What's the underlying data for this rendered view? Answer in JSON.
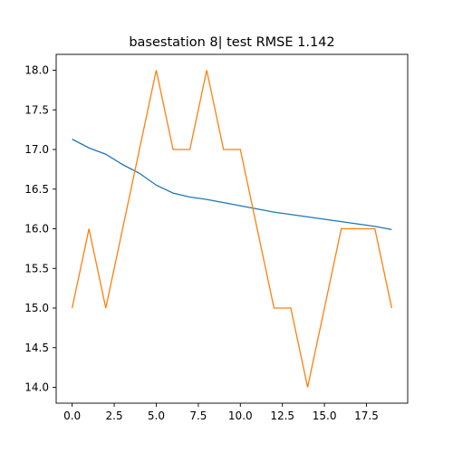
{
  "chart_data": {
    "type": "line",
    "title": "basestation 8| test RMSE 1.142",
    "xlabel": "",
    "ylabel": "",
    "xlim": [
      -0.95,
      19.95
    ],
    "ylim": [
      13.8,
      18.2
    ],
    "x_ticks": [
      0.0,
      2.5,
      5.0,
      7.5,
      10.0,
      12.5,
      15.0,
      17.5
    ],
    "x_tick_labels": [
      "0.0",
      "2.5",
      "5.0",
      "7.5",
      "10.0",
      "12.5",
      "15.0",
      "17.5"
    ],
    "y_ticks": [
      14.0,
      14.5,
      15.0,
      15.5,
      16.0,
      16.5,
      17.0,
      17.5,
      18.0
    ],
    "y_tick_labels": [
      "14.0",
      "14.5",
      "15.0",
      "15.5",
      "16.0",
      "16.5",
      "17.0",
      "17.5",
      "18.0"
    ],
    "grid": false,
    "x": [
      0,
      1,
      2,
      3,
      4,
      5,
      6,
      7,
      8,
      9,
      10,
      11,
      12,
      13,
      14,
      15,
      16,
      17,
      18,
      19
    ],
    "series": [
      {
        "color": "#1f77b4",
        "values": [
          17.13,
          17.02,
          16.94,
          16.81,
          16.7,
          16.55,
          16.45,
          16.4,
          16.37,
          16.33,
          16.29,
          16.25,
          16.21,
          16.18,
          16.15,
          16.12,
          16.09,
          16.06,
          16.03,
          15.99
        ]
      },
      {
        "color": "#ff7f0e",
        "values": [
          15,
          16,
          15,
          16,
          17,
          18,
          17,
          17,
          18,
          17,
          17,
          16,
          15,
          15,
          14,
          15,
          16,
          16,
          16,
          15
        ]
      }
    ]
  }
}
